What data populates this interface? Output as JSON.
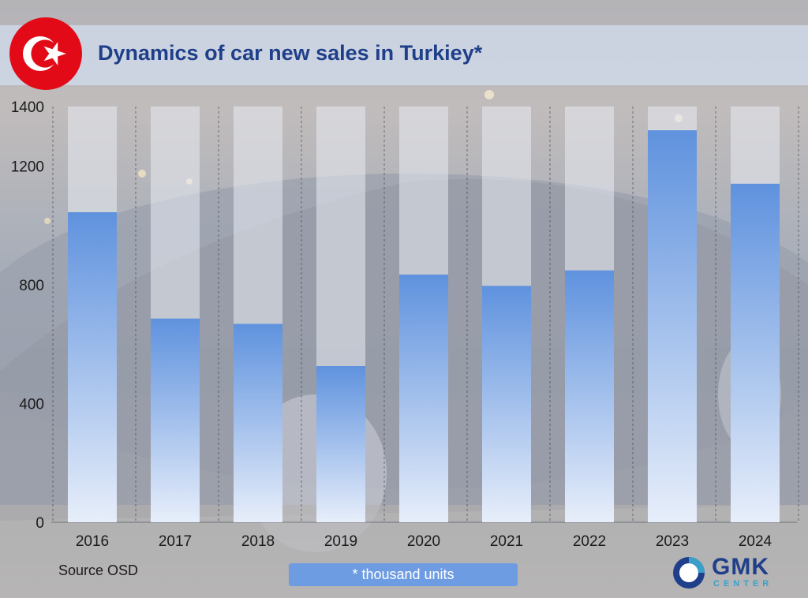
{
  "title": "Dynamics of car new sales in Turkiey*",
  "source": "Source OSD",
  "units_note": "* thousand units",
  "logo": {
    "word": "GMK",
    "sub": "CENTER"
  },
  "icons": {
    "flag": "turkey-flag-icon",
    "logo_mark": "gmk-logo-mark-icon"
  },
  "colors": {
    "title": "#1f3f8a",
    "bar_top": "#5f92de",
    "bar_bottom": "#e7eefa",
    "track": "#e8ebf2",
    "units_box": "#6d9ce2",
    "flag_red": "#e30a17"
  },
  "chart_data": {
    "type": "bar",
    "title": "Dynamics of car new sales in Turkiey*",
    "categories": [
      "2016",
      "2017",
      "2018",
      "2019",
      "2020",
      "2021",
      "2022",
      "2023",
      "2024"
    ],
    "values": [
      1044,
      686,
      668,
      526,
      834,
      796,
      848,
      1320,
      1140
    ],
    "yticks": [
      "0",
      "400",
      "800",
      "1200",
      "1400"
    ],
    "ytick_values": [
      0,
      400,
      800,
      1200,
      1400
    ],
    "ylim": [
      0,
      1400
    ],
    "xlabel": "",
    "ylabel": "",
    "grid": false,
    "legend": "none"
  }
}
